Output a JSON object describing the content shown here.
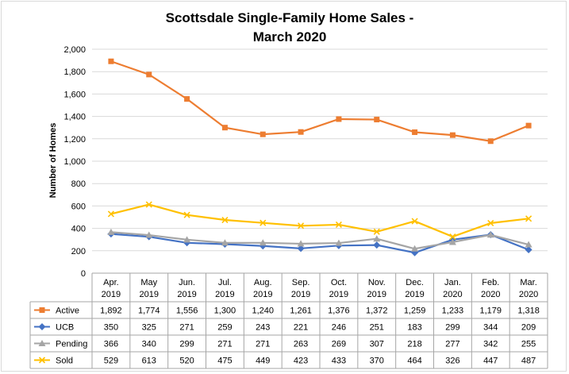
{
  "chart_data": {
    "type": "line",
    "title_line1": "Scottsdale Single-Family Home Sales -",
    "title_line2": "March 2020",
    "ylabel": "Number of Homes",
    "ylim": [
      0,
      2000
    ],
    "yticks": [
      "0",
      "200",
      "400",
      "600",
      "800",
      "1,000",
      "1,200",
      "1,400",
      "1,600",
      "1,800",
      "2,000"
    ],
    "ytick_values": [
      0,
      200,
      400,
      600,
      800,
      1000,
      1200,
      1400,
      1600,
      1800,
      2000
    ],
    "grid": true,
    "legend": "data table",
    "categories": [
      {
        "month": "Apr.",
        "year": "2019"
      },
      {
        "month": "May",
        "year": "2019"
      },
      {
        "month": "Jun.",
        "year": "2019"
      },
      {
        "month": "Jul.",
        "year": "2019"
      },
      {
        "month": "Aug.",
        "year": "2019"
      },
      {
        "month": "Sep.",
        "year": "2019"
      },
      {
        "month": "Oct.",
        "year": "2019"
      },
      {
        "month": "Nov.",
        "year": "2019"
      },
      {
        "month": "Dec.",
        "year": "2019"
      },
      {
        "month": "Jan.",
        "year": "2020"
      },
      {
        "month": "Feb.",
        "year": "2020"
      },
      {
        "month": "Mar.",
        "year": "2020"
      }
    ],
    "series": [
      {
        "name": "Active",
        "color": "#ED7D31",
        "marker": "square",
        "values": [
          1892,
          1774,
          1556,
          1300,
          1240,
          1261,
          1376,
          1372,
          1259,
          1233,
          1179,
          1318
        ],
        "labels": [
          "1,892",
          "1,774",
          "1,556",
          "1,300",
          "1,240",
          "1,261",
          "1,376",
          "1,372",
          "1,259",
          "1,233",
          "1,179",
          "1,318"
        ]
      },
      {
        "name": "UCB",
        "color": "#4472C4",
        "marker": "diamond",
        "values": [
          350,
          325,
          271,
          259,
          243,
          221,
          246,
          251,
          183,
          299,
          344,
          209
        ],
        "labels": [
          "350",
          "325",
          "271",
          "259",
          "243",
          "221",
          "246",
          "251",
          "183",
          "299",
          "344",
          "209"
        ]
      },
      {
        "name": "Pending",
        "color": "#A5A5A5",
        "marker": "triangle",
        "values": [
          366,
          340,
          299,
          271,
          271,
          263,
          269,
          307,
          218,
          277,
          342,
          255
        ],
        "labels": [
          "366",
          "340",
          "299",
          "271",
          "271",
          "263",
          "269",
          "307",
          "218",
          "277",
          "342",
          "255"
        ]
      },
      {
        "name": "Sold",
        "color": "#FFC000",
        "marker": "x",
        "values": [
          529,
          613,
          520,
          475,
          449,
          423,
          433,
          370,
          464,
          326,
          447,
          487
        ],
        "labels": [
          "529",
          "613",
          "520",
          "475",
          "449",
          "423",
          "433",
          "370",
          "464",
          "326",
          "447",
          "487"
        ]
      }
    ]
  }
}
